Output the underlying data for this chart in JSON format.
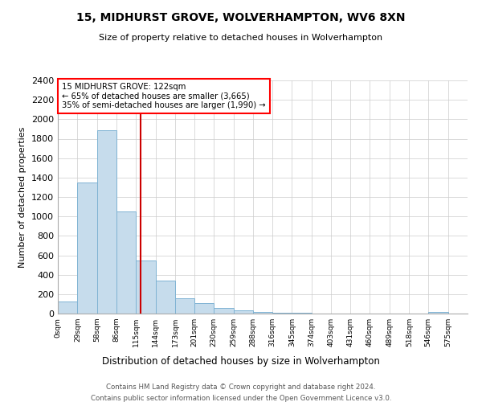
{
  "title": "15, MIDHURST GROVE, WOLVERHAMPTON, WV6 8XN",
  "subtitle": "Size of property relative to detached houses in Wolverhampton",
  "xlabel": "Distribution of detached houses by size in Wolverhampton",
  "ylabel": "Number of detached properties",
  "bin_labels": [
    "0sqm",
    "29sqm",
    "58sqm",
    "86sqm",
    "115sqm",
    "144sqm",
    "173sqm",
    "201sqm",
    "230sqm",
    "259sqm",
    "288sqm",
    "316sqm",
    "345sqm",
    "374sqm",
    "403sqm",
    "431sqm",
    "460sqm",
    "489sqm",
    "518sqm",
    "546sqm",
    "575sqm"
  ],
  "bin_edges": [
    0,
    29,
    58,
    86,
    115,
    144,
    173,
    201,
    230,
    259,
    288,
    316,
    345,
    374,
    403,
    431,
    460,
    489,
    518,
    546,
    575,
    604
  ],
  "bar_heights": [
    125,
    1350,
    1890,
    1050,
    550,
    340,
    155,
    110,
    60,
    30,
    15,
    5,
    5,
    2,
    0,
    0,
    0,
    0,
    0,
    15,
    0
  ],
  "bar_color": "#c6dcec",
  "bar_edge_color": "#7fb3d3",
  "vline_x": 122,
  "vline_color": "#cc0000",
  "annotation_title": "15 MIDHURST GROVE: 122sqm",
  "annotation_line1": "← 65% of detached houses are smaller (3,665)",
  "annotation_line2": "35% of semi-detached houses are larger (1,990) →",
  "ylim": [
    0,
    2400
  ],
  "yticks": [
    0,
    200,
    400,
    600,
    800,
    1000,
    1200,
    1400,
    1600,
    1800,
    2000,
    2200,
    2400
  ],
  "footer_line1": "Contains HM Land Registry data © Crown copyright and database right 2024.",
  "footer_line2": "Contains public sector information licensed under the Open Government Licence v3.0.",
  "bg_color": "#ffffff",
  "grid_color": "#cccccc"
}
